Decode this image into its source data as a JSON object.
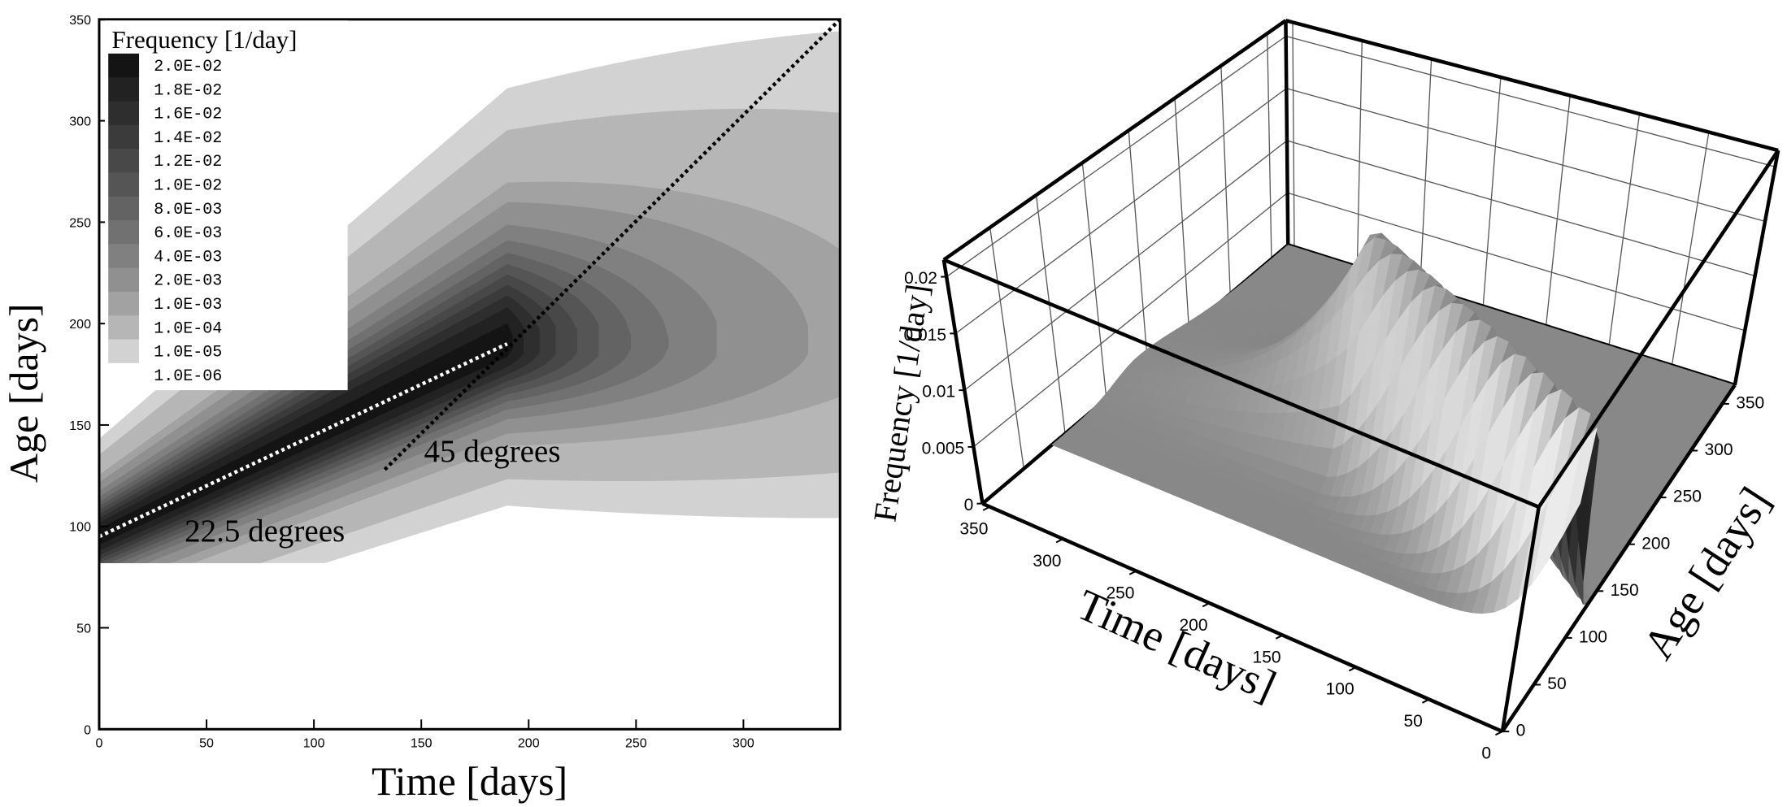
{
  "chart_data": [
    {
      "type": "contour",
      "xlabel": "Time [days]",
      "ylabel": "Age [days]",
      "xlim": [
        0,
        345
      ],
      "ylim": [
        0,
        350
      ],
      "xticks": [
        0,
        50,
        100,
        150,
        200,
        250,
        300
      ],
      "yticks": [
        0,
        50,
        100,
        150,
        200,
        250,
        300,
        350
      ],
      "legend_title": "Frequency [1/day]",
      "levels": [
        {
          "value": 0.02,
          "label": "2.0E-02"
        },
        {
          "value": 0.018,
          "label": "1.8E-02"
        },
        {
          "value": 0.016,
          "label": "1.6E-02"
        },
        {
          "value": 0.014,
          "label": "1.4E-02"
        },
        {
          "value": 0.012,
          "label": "1.2E-02"
        },
        {
          "value": 0.01,
          "label": "1.0E-02"
        },
        {
          "value": 0.008,
          "label": "8.0E-03"
        },
        {
          "value": 0.006,
          "label": "6.0E-03"
        },
        {
          "value": 0.004,
          "label": "4.0E-03"
        },
        {
          "value": 0.002,
          "label": "2.0E-03"
        },
        {
          "value": 0.001,
          "label": "1.0E-03"
        },
        {
          "value": 0.0001,
          "label": "1.0E-04"
        },
        {
          "value": 1e-05,
          "label": "1.0E-05"
        },
        {
          "value": 1e-06,
          "label": "1.0E-06"
        }
      ],
      "colors": [
        "#141414",
        "#222222",
        "#2e2e2e",
        "#3b3b3b",
        "#484848",
        "#555555",
        "#636363",
        "#717171",
        "#808080",
        "#909090",
        "#a2a2a2",
        "#b6b6b6",
        "#d2d2d2",
        "#ffffff"
      ],
      "annotations": [
        "45 degrees",
        "22.5 degrees"
      ],
      "reference_lines": [
        {
          "x": [
            133,
            345
          ],
          "y": [
            128,
            350
          ],
          "color": "#000000"
        },
        {
          "x": [
            0,
            190
          ],
          "y": [
            95,
            190
          ],
          "color": "#ffffff"
        }
      ]
    },
    {
      "type": "surface3d",
      "xlabel": "Time [days]",
      "ylabel": "Age [days]",
      "zlabel": "Frequency [1/day]",
      "xlim": [
        0,
        355
      ],
      "ylim": [
        0,
        370
      ],
      "zlim": [
        0,
        0.0215
      ],
      "xticks": [
        0,
        50,
        100,
        150,
        200,
        250,
        300,
        350
      ],
      "yticks": [
        0,
        50,
        100,
        150,
        200,
        250,
        300,
        350
      ],
      "zticks": [
        0,
        0.005,
        0.01,
        0.015,
        0.02
      ],
      "color": "#888888"
    }
  ]
}
